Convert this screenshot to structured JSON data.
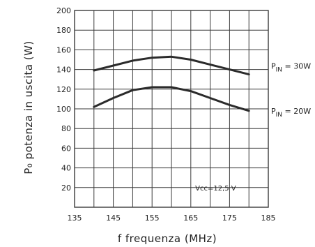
{
  "chart_data": {
    "type": "line",
    "xlabel": "f frequenza (MHz)",
    "ylabel": "P₀ potenza in uscita (W)",
    "xlim": [
      135,
      185
    ],
    "ylim": [
      0,
      200
    ],
    "x_ticks": [
      135,
      145,
      155,
      165,
      175,
      185
    ],
    "x_tick_labels": [
      "135",
      "145",
      "155",
      "165",
      "175",
      "185"
    ],
    "y_ticks": [
      20,
      40,
      60,
      80,
      100,
      120,
      140,
      160,
      180,
      200
    ],
    "y_tick_labels": [
      "20",
      "40",
      "60",
      "80",
      "100",
      "120",
      "140",
      "160",
      "180",
      "200"
    ],
    "x_gridlines": [
      135,
      140,
      145,
      150,
      155,
      160,
      165,
      170,
      175,
      180,
      185
    ],
    "y_gridlines": [
      0,
      20,
      40,
      60,
      80,
      100,
      120,
      140,
      160,
      180,
      200
    ],
    "grid": true,
    "series": [
      {
        "name": "P_IN = 30W",
        "label_main": "P",
        "label_sub": "IN",
        "label_rest": " = 30W",
        "x": [
          140,
          145,
          150,
          155,
          160,
          165,
          170,
          175,
          180
        ],
        "y": [
          139,
          144,
          149,
          152,
          153,
          150,
          145,
          140,
          135
        ]
      },
      {
        "name": "P_IN = 20W",
        "label_main": "P",
        "label_sub": "IN",
        "label_rest": " = 20W",
        "x": [
          140,
          145,
          150,
          155,
          160,
          165,
          170,
          175,
          180
        ],
        "y": [
          102,
          111,
          119,
          122,
          122,
          118,
          111,
          104,
          98
        ]
      }
    ],
    "annotation": "Vcc=12,5 V",
    "line_color": "#2b2b2b",
    "grid_color": "#3a3a3a"
  }
}
